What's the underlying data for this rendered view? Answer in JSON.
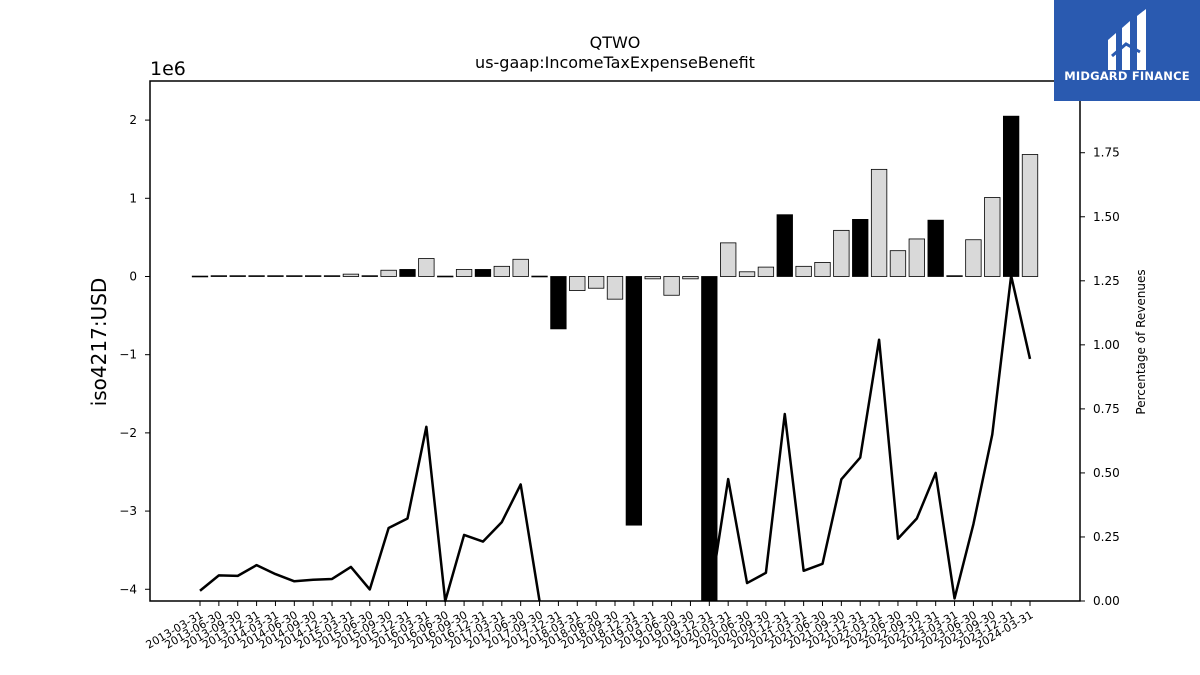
{
  "chart_data": {
    "type": "bar",
    "title": "QTWO",
    "subtitle": "us-gaap:IncomeTaxExpenseBenefit",
    "ylabel": "iso4217:USD",
    "y_offset_text": "1e6",
    "y2label": "Percentage of Revenues",
    "ylim": [
      -4.15,
      2.5
    ],
    "y2lim": [
      0.0,
      2.03
    ],
    "yticks": [
      2,
      1,
      0,
      -1,
      -2,
      -3,
      -4
    ],
    "y2ticks": [
      "1.75",
      "1.50",
      "1.25",
      "1.00",
      "0.75",
      "0.50",
      "0.25",
      "0.00"
    ],
    "categories": [
      "2013-03-31",
      "2013-06-30",
      "2013-09-30",
      "2013-12-31",
      "2014-03-31",
      "2014-06-30",
      "2014-09-30",
      "2014-12-31",
      "2015-03-31",
      "2015-06-30",
      "2015-09-30",
      "2015-12-31",
      "2016-03-31",
      "2016-06-30",
      "2016-09-30",
      "2016-12-31",
      "2017-03-31",
      "2017-06-30",
      "2017-09-30",
      "2017-12-31",
      "2018-03-31",
      "2018-06-30",
      "2018-09-30",
      "2018-12-31",
      "2019-03-31",
      "2019-06-30",
      "2019-09-30",
      "2019-12-31",
      "2020-03-31",
      "2020-06-30",
      "2020-09-30",
      "2020-12-31",
      "2021-03-31",
      "2021-06-30",
      "2021-09-30",
      "2021-12-31",
      "2022-03-31",
      "2022-06-30",
      "2022-09-30",
      "2022-12-31",
      "2023-03-31",
      "2023-06-30",
      "2023-09-30",
      "2023-12-31",
      "2024-03-31"
    ],
    "series": [
      {
        "type": "bar",
        "values": [
          0.005,
          0.01,
          0.01,
          0.01,
          0.01,
          0.01,
          0.01,
          0.01,
          0.03,
          0.01,
          0.08,
          0.09,
          0.23,
          0.005,
          0.09,
          0.09,
          0.13,
          0.22,
          0.005,
          -0.67,
          -0.18,
          -0.15,
          -0.29,
          -3.18,
          -0.03,
          -0.24,
          -0.03,
          -4.15,
          0.43,
          0.06,
          0.12,
          0.79,
          0.13,
          0.18,
          0.59,
          0.73,
          1.37,
          0.33,
          0.48,
          0.72,
          0.01,
          0.47,
          1.01,
          2.05,
          1.56
        ],
        "fill": [
          "gray",
          "black",
          "black",
          "black",
          "black",
          "black",
          "black",
          "black",
          "gray",
          "black",
          "gray",
          "black",
          "gray",
          "gray",
          "gray",
          "black",
          "gray",
          "gray",
          "gray",
          "black",
          "gray",
          "gray",
          "gray",
          "black",
          "gray",
          "gray",
          "gray",
          "black",
          "gray",
          "gray",
          "gray",
          "black",
          "gray",
          "gray",
          "gray",
          "black",
          "gray",
          "gray",
          "gray",
          "black",
          "black",
          "gray",
          "gray",
          "black",
          "gray"
        ]
      },
      {
        "type": "line",
        "axis": "right",
        "values": [
          0.04,
          0.1,
          0.098,
          0.14,
          0.105,
          0.077,
          0.083,
          0.086,
          0.133,
          0.045,
          0.285,
          0.322,
          0.68,
          0.0,
          0.258,
          0.232,
          0.308,
          0.455,
          0.0,
          null,
          null,
          null,
          null,
          null,
          null,
          null,
          null,
          0.0,
          0.476,
          0.07,
          0.11,
          0.73,
          0.118,
          0.145,
          0.475,
          0.56,
          1.02,
          0.243,
          0.322,
          0.5,
          0.01,
          0.3,
          0.65,
          1.27,
          0.945
        ]
      }
    ],
    "colors": {
      "bar_fill_gray": "#d9d9d9",
      "bar_fill_black": "#000000",
      "bar_edge": "#000000",
      "line": "#000000"
    },
    "grid": false,
    "legend": "none"
  },
  "logo": {
    "text": "MIDGARD FINANCE",
    "bg": "#2a5ab0"
  }
}
